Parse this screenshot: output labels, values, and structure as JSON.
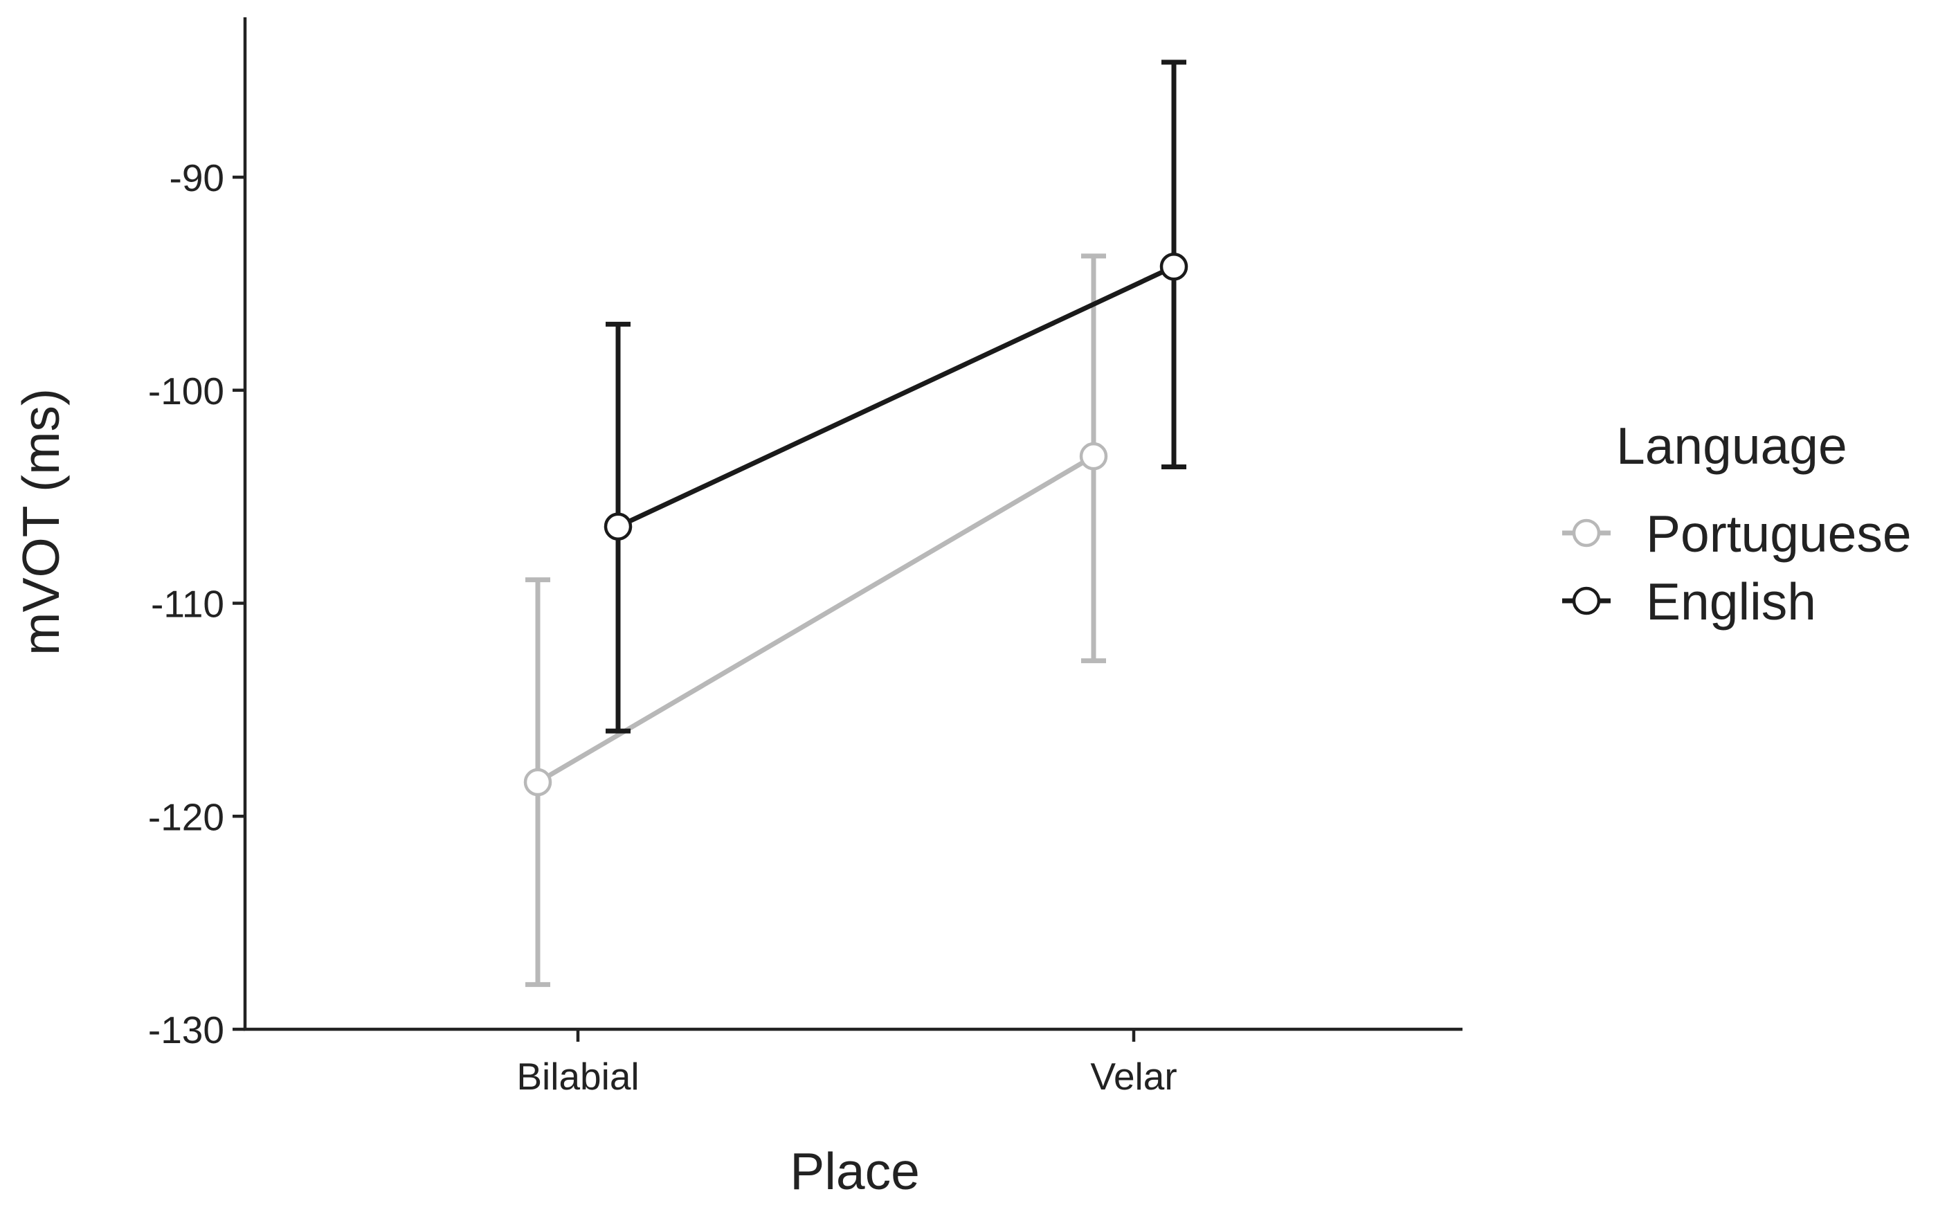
{
  "chart_data": {
    "type": "line",
    "title": "",
    "xlabel": "Place",
    "ylabel": "mVOT (ms)",
    "categories": [
      "Bilabial",
      "Velar"
    ],
    "ylim": [
      -130,
      -82.5
    ],
    "yticks": [
      -90,
      -100,
      -110,
      -120,
      -130
    ],
    "grid": false,
    "legend": {
      "title": "Language",
      "position": "right"
    },
    "series": [
      {
        "name": "Portuguese",
        "color": "#b8b8b8",
        "values": [
          -118.4,
          -103.1
        ],
        "error_low": [
          -127.9,
          -112.7
        ],
        "error_high": [
          -108.9,
          -93.7
        ]
      },
      {
        "name": "English",
        "color": "#1a1a1a",
        "values": [
          -106.4,
          -94.2
        ],
        "error_low": [
          -116.0,
          -103.6
        ],
        "error_high": [
          -96.9,
          -84.6
        ]
      }
    ]
  }
}
